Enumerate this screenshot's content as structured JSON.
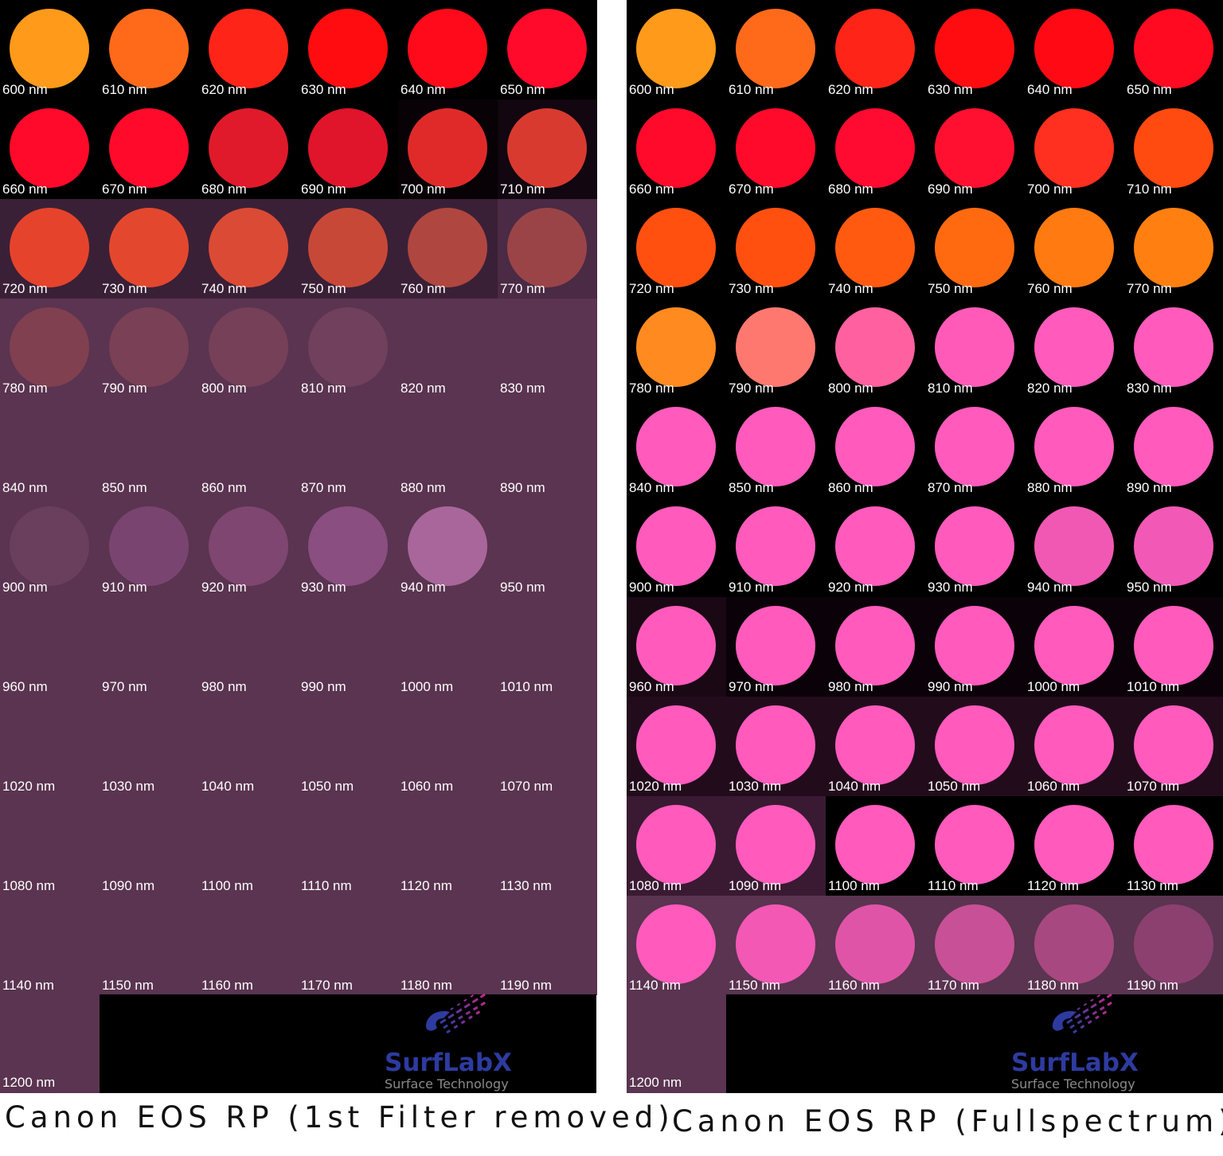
{
  "panels": [
    {
      "id": "left",
      "caption": "Canon EOS RP (1st Filter removed)",
      "labels": [
        "600 nm",
        "610 nm",
        "620 nm",
        "630 nm",
        "640 nm",
        "650 nm",
        "660 nm",
        "670 nm",
        "680 nm",
        "690 nm",
        "700 nm",
        "710 nm",
        "720 nm",
        "730 nm",
        "740 nm",
        "750 nm",
        "760 nm",
        "770 nm",
        "780 nm",
        "790 nm",
        "800 nm",
        "810 nm",
        "820 nm",
        "830 nm",
        "840 nm",
        "850 nm",
        "860 nm",
        "870 nm",
        "880 nm",
        "890 nm",
        "900 nm",
        "910 nm",
        "920 nm",
        "930 nm",
        "940 nm",
        "950 nm",
        "960 nm",
        "970 nm",
        "980 nm",
        "990 nm",
        "1000 nm",
        "1010 nm",
        "1020 nm",
        "1030 nm",
        "1040 nm",
        "1050 nm",
        "1060 nm",
        "1070 nm",
        "1080 nm",
        "1090 nm",
        "1100 nm",
        "1110 nm",
        "1120 nm",
        "1130 nm",
        "1140 nm",
        "1150 nm",
        "1160 nm",
        "1170 nm",
        "1180 nm",
        "1190 nm"
      ],
      "last_label": "1200 nm",
      "spot_colors": [
        "#ff9a1a",
        "#ff6a1a",
        "#ff2418",
        "#ff0c10",
        "#ff0a1a",
        "#ff0a2a",
        "#ff0a2a",
        "#ff0a2a",
        "#e01a2a",
        "#e0142a",
        "#e02a2a",
        "#d83a30",
        "#e6432c",
        "#e3482e",
        "#db4a35",
        "#c84838",
        "#b04640",
        "#9a4448",
        "#804050",
        "#7a4055",
        "#754058",
        "#70405c",
        "#6a405c",
        "#663f5c",
        "#643f5c",
        "#643f5c",
        "#643f5c",
        "#643f5c",
        "#643f5c",
        "#643f5c",
        "#6a3f5e",
        "#7a4470",
        "#7e4670",
        "#8a4e80",
        "#a8669a",
        "#643f5c",
        "#643f5c",
        "#643f5c",
        "#643f5c",
        "#643f5c",
        "#643f5c",
        "#643f5c",
        "#643f5c",
        "#643f5c",
        "#643f5c",
        "#643f5c",
        "#643f5c",
        "#643f5c",
        "#643f5c",
        "#643f5c",
        "#643f5c",
        "#643f5c",
        "#643f5c",
        "#643f5c",
        "#643f5c",
        "#643f5c",
        "#643f5c",
        "#643f5c",
        "#643f5c",
        "#643f5c"
      ],
      "bg_colors": [
        "#000000",
        "#000000",
        "#000000",
        "#000000",
        "#000000",
        "#000000",
        "#000000",
        "#000000",
        "#000000",
        "#000000",
        "#080206",
        "#120610",
        "#3a2036",
        "#3a2036",
        "#3a2036",
        "#3a2036",
        "#3a2036",
        "#4a2a44",
        "#5a3450",
        "#5a3450",
        "#5a3450",
        "#5a3450",
        "#5a3450",
        "#5a3450",
        "#5a3450",
        "#5a3450",
        "#5a3450",
        "#5a3450",
        "#5a3450",
        "#5a3450",
        "#5a3450",
        "#5a3450",
        "#5a3450",
        "#5a3450",
        "#5a3450",
        "#5a3450",
        "#5a3450",
        "#5a3450",
        "#5a3450",
        "#5a3450",
        "#5a3450",
        "#5a3450",
        "#5a3450",
        "#5a3450",
        "#5a3450",
        "#5a3450",
        "#5a3450",
        "#5a3450",
        "#5a3450",
        "#5a3450",
        "#5a3450",
        "#5a3450",
        "#5a3450",
        "#5a3450",
        "#5a3450",
        "#5a3450",
        "#5a3450",
        "#5a3450",
        "#5a3450",
        "#5a3450"
      ],
      "spot_visible": [
        true,
        true,
        true,
        true,
        true,
        true,
        true,
        true,
        true,
        true,
        true,
        true,
        true,
        true,
        true,
        true,
        true,
        true,
        true,
        true,
        true,
        true,
        false,
        false,
        false,
        false,
        false,
        false,
        false,
        false,
        true,
        true,
        true,
        true,
        true,
        false,
        false,
        false,
        false,
        false,
        false,
        false,
        false,
        false,
        false,
        false,
        false,
        false,
        false,
        false,
        false,
        false,
        false,
        false,
        false,
        false,
        false,
        false,
        false,
        false
      ],
      "last_bg": "#5a3450"
    },
    {
      "id": "right",
      "caption": "Canon EOS RP (Fullspectrum)",
      "labels": [
        "600 nm",
        "610 nm",
        "620 nm",
        "630 nm",
        "640 nm",
        "650 nm",
        "660 nm",
        "670 nm",
        "680 nm",
        "690 nm",
        "700 nm",
        "710 nm",
        "720 nm",
        "730 nm",
        "740 nm",
        "750 nm",
        "760 nm",
        "770 nm",
        "780 nm",
        "790 nm",
        "800 nm",
        "810 nm",
        "820 nm",
        "830 nm",
        "840 nm",
        "850 nm",
        "860 nm",
        "870 nm",
        "880 nm",
        "890 nm",
        "900 nm",
        "910 nm",
        "920 nm",
        "930 nm",
        "940 nm",
        "950 nm",
        "960 nm",
        "970 nm",
        "980 nm",
        "990 nm",
        "1000 nm",
        "1010 nm",
        "1020 nm",
        "1030 nm",
        "1040 nm",
        "1050 nm",
        "1060 nm",
        "1070 nm",
        "1080 nm",
        "1090 nm",
        "1100 nm",
        "1110 nm",
        "1120 nm",
        "1130 nm",
        "1140 nm",
        "1150 nm",
        "1160 nm",
        "1170 nm",
        "1180 nm",
        "1190 nm"
      ],
      "last_label": "1200 nm",
      "spot_colors": [
        "#ff9a1a",
        "#ff6a1a",
        "#ff2418",
        "#ff0c10",
        "#ff0a14",
        "#ff0a20",
        "#ff0a2a",
        "#ff0a2a",
        "#ff0a30",
        "#ff1030",
        "#ff3020",
        "#ff4a10",
        "#ff5010",
        "#ff5010",
        "#ff5a10",
        "#ff6a10",
        "#ff7a10",
        "#ff8010",
        "#ff8a20",
        "#ff7870",
        "#ff60a0",
        "#ff5ab8",
        "#ff5abc",
        "#ff5abc",
        "#ff5abc",
        "#ff5abc",
        "#ff5abc",
        "#ff5abc",
        "#ff5abc",
        "#ff5abc",
        "#ff5abc",
        "#ff5abc",
        "#ff5abc",
        "#ff5abc",
        "#f058b4",
        "#f258b6",
        "#ff5abc",
        "#ff5abc",
        "#ff5abc",
        "#ff5abc",
        "#ff5abc",
        "#ff5abc",
        "#ff5abc",
        "#ff5abc",
        "#ff5abc",
        "#ff5abc",
        "#ff5abc",
        "#ff5abc",
        "#ff5abc",
        "#ff5abc",
        "#ff5abc",
        "#ff5abc",
        "#ff5abc",
        "#ff5abc",
        "#ff5abc",
        "#f258b4",
        "#e054a8",
        "#c85096",
        "#a84880",
        "#8c4070"
      ],
      "bg_colors": [
        "#000000",
        "#000000",
        "#000000",
        "#000000",
        "#000000",
        "#000000",
        "#000000",
        "#000000",
        "#000000",
        "#000000",
        "#000000",
        "#000000",
        "#000000",
        "#000000",
        "#000000",
        "#000000",
        "#000000",
        "#000000",
        "#000000",
        "#000000",
        "#000000",
        "#000000",
        "#000000",
        "#000000",
        "#000000",
        "#000000",
        "#000000",
        "#000000",
        "#000000",
        "#000000",
        "#000000",
        "#000000",
        "#000000",
        "#000000",
        "#000000",
        "#000000",
        "#1a0814",
        "#0a0208",
        "#0a0208",
        "#0a0208",
        "#0a0208",
        "#0a0208",
        "#220c1c",
        "#220c1c",
        "#220c1c",
        "#220c1c",
        "#220c1c",
        "#220c1c",
        "#3a1a32",
        "#3a1a32",
        "#000000",
        "#000000",
        "#000000",
        "#000000",
        "#5a3450",
        "#5a3450",
        "#5a3450",
        "#5a3450",
        "#5a3450",
        "#5a3450"
      ],
      "spot_visible": [
        true,
        true,
        true,
        true,
        true,
        true,
        true,
        true,
        true,
        true,
        true,
        true,
        true,
        true,
        true,
        true,
        true,
        true,
        true,
        true,
        true,
        true,
        true,
        true,
        true,
        true,
        true,
        true,
        true,
        true,
        true,
        true,
        true,
        true,
        true,
        true,
        true,
        true,
        true,
        true,
        true,
        true,
        true,
        true,
        true,
        true,
        true,
        true,
        true,
        true,
        true,
        true,
        true,
        true,
        true,
        true,
        true,
        true,
        true,
        true
      ],
      "last_bg": "#5a3450"
    }
  ],
  "logo": {
    "brand": "SurfLabX",
    "tagline": "Surface Technology",
    "brand_color": "#2d3ba0",
    "accent_color": "#c02a8a"
  }
}
